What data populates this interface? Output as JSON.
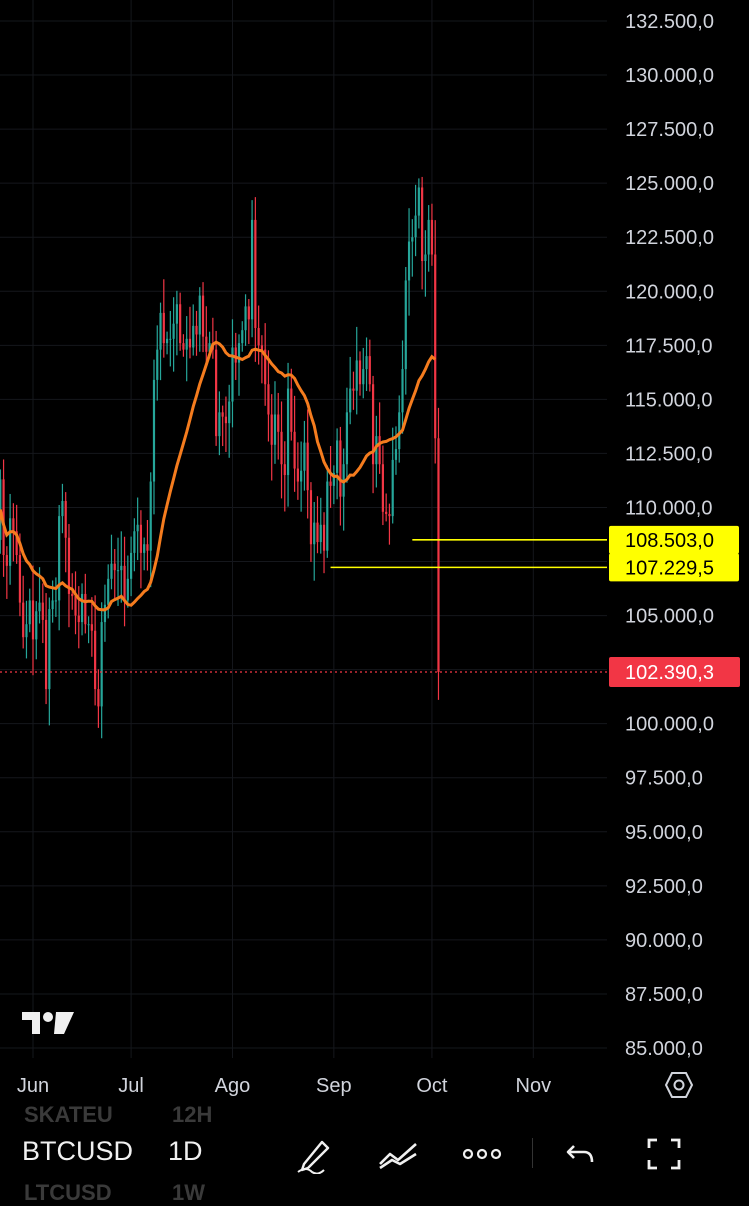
{
  "chart_data": {
    "type": "candlestick",
    "symbol": "BTCUSD",
    "interval": "1D",
    "y_ticks": [
      "132.500,0",
      "130.000,0",
      "127.500,0",
      "125.000,0",
      "122.500,0",
      "120.000,0",
      "117.500,0",
      "115.000,0",
      "112.500,0",
      "110.000,0",
      "105.000,0",
      "100.000,0",
      "97.500,0",
      "95.000,0",
      "92.500,0",
      "90.000,0",
      "87.500,0",
      "85.000,0"
    ],
    "y_tick_values": [
      132500,
      130000,
      127500,
      125000,
      122500,
      120000,
      117500,
      115000,
      112500,
      110000,
      105000,
      100000,
      97500,
      95000,
      92500,
      90000,
      87500,
      85000
    ],
    "ylim": [
      84500,
      133000
    ],
    "x_ticks": [
      "Jun",
      "Jul",
      "Ago",
      "Sep",
      "Oct",
      "Nov"
    ],
    "x_tick_dates": [
      "2025-06-01",
      "2025-07-01",
      "2025-08-01",
      "2025-09-01",
      "2025-10-01",
      "2025-11-01"
    ],
    "xlim": [
      "2025-05-21",
      "2025-11-24"
    ],
    "grid": true,
    "candles_daily": {
      "start_date": "2025-05-21",
      "close": [
        108500,
        111300,
        107800,
        107300,
        109500,
        108900,
        107800,
        105600,
        104000,
        104600,
        105700,
        103900,
        105200,
        105600,
        104800,
        101600,
        105300,
        105700,
        105700,
        109600,
        110300,
        108600,
        106000,
        105900,
        105000,
        104700,
        106000,
        104600,
        104600,
        104300,
        101600,
        100800,
        104700,
        105500,
        106700,
        107400,
        107100,
        107100,
        107300,
        105700,
        106700,
        107900,
        108900,
        109200,
        107900,
        108300,
        108000,
        111200,
        115900,
        117300,
        119000,
        117600,
        117800,
        117800,
        118500,
        119400,
        117600,
        117300,
        117800,
        117400,
        118400,
        118000,
        119800,
        117900,
        117200,
        117600,
        117300,
        113300,
        114400,
        114200,
        113900,
        114900,
        117400,
        116700,
        117600,
        118200,
        119300,
        118700,
        123300,
        118300,
        117500,
        117300,
        115700,
        114300,
        112900,
        114300,
        113500,
        112000,
        111500,
        115500,
        113500,
        111800,
        111200,
        111700,
        113000,
        110800,
        108300,
        109300,
        108400,
        109200,
        108000,
        111200,
        111000,
        111600,
        113100,
        110500,
        112000,
        114400,
        115500,
        115400,
        116800,
        115700,
        116400,
        117000,
        115700,
        112000,
        113300,
        112000,
        109800,
        109700,
        109600,
        112200,
        112700,
        114400,
        116400,
        120500,
        122300,
        122500,
        123500,
        124800,
        121400,
        121700,
        123300,
        121700,
        113200,
        102390.3
      ],
      "highs_note": "approximate daily closes read from the chart"
    },
    "series": [
      {
        "name": "",
        "type": "moving_average",
        "color": "#f57c1e"
      }
    ],
    "levels": [
      {
        "label": "108.503,0",
        "value": 108503.0,
        "start_date": "2025-09-25",
        "color": "#ffff00"
      },
      {
        "label": "107.229,5",
        "value": 107229.5,
        "start_date": "2025-08-31",
        "color": "#ffff00"
      }
    ],
    "last_price": {
      "label": "102.390,3",
      "value": 102390.3,
      "color": "#f23645"
    },
    "colors": {
      "up": "#26a69a",
      "down": "#f23645",
      "grid": "#15171c"
    }
  },
  "toolbar": {
    "symbol": "BTCUSD",
    "interval": "1D",
    "ghost_above": {
      "symbol": "SKATEU",
      "interval": "12H"
    },
    "ghost_below": {
      "symbol": "LTCUSD",
      "interval": "1W"
    },
    "icons": [
      "pen-icon",
      "trend-icon",
      "more-icon",
      "undo-icon",
      "fullscreen-icon"
    ]
  }
}
